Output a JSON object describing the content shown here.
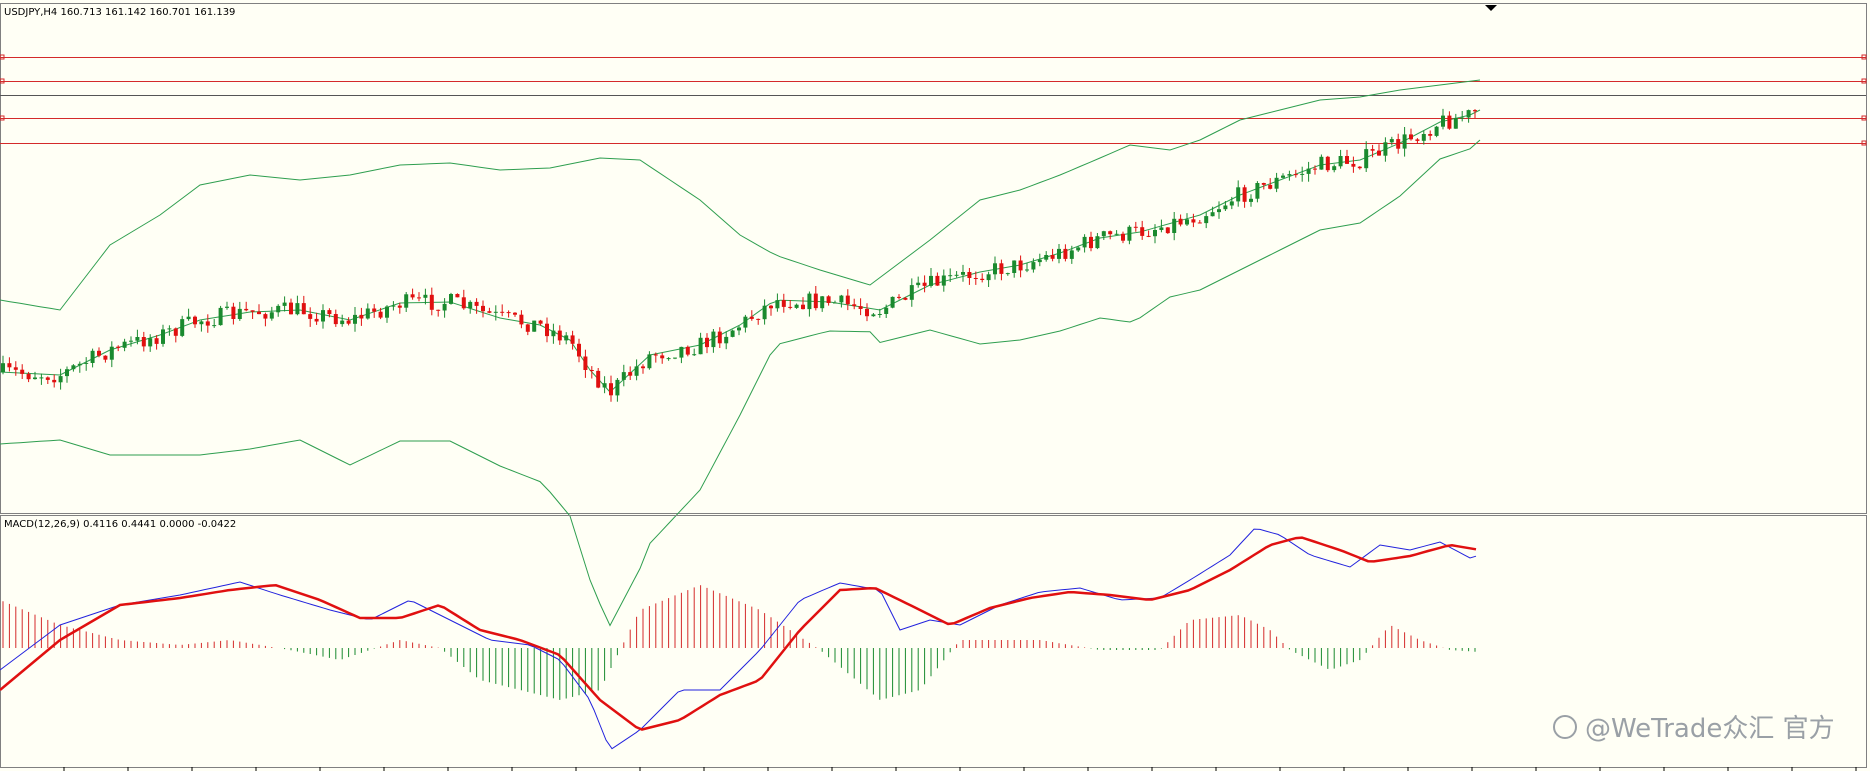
{
  "header": {
    "symbol_label": "USDJPY,H4  160.713 161.142 160.701 161.139"
  },
  "macd_panel": {
    "label": "MACD(12,26,9) 0.4116 0.4441 0.0000 -0.0422"
  },
  "watermark": {
    "text": "@WeTrade众汇 官方"
  },
  "colors": {
    "background": "#fffff5",
    "bull_candle": "#1a8a2e",
    "bear_candle": "#e01010",
    "bands": "#2e9e4f",
    "hlines": "#d42a2a",
    "macd_fast": "#2222dd",
    "macd_signal": "#e01010",
    "hist_pos": "#d42a2a",
    "hist_neg": "#1a8a2e"
  },
  "chart_data": [
    {
      "type": "candlestick",
      "title": "USDJPY,H4",
      "symbol": "USDJPY",
      "timeframe": "H4",
      "ohlc_last": {
        "open": 160.713,
        "high": 161.142,
        "low": 160.701,
        "close": 161.139
      },
      "overlays": [
        "Bollinger Bands"
      ],
      "horizontal_lines": 5,
      "grid": false
    },
    {
      "type": "line",
      "title": "MACD(12,26,9)",
      "params": [
        12,
        26,
        9
      ],
      "values": {
        "macd": 0.4116,
        "signal": 0.4441,
        "histogram_a": 0.0,
        "histogram_b": -0.0422
      },
      "series": [
        {
          "name": "MACD",
          "color": "#2222dd"
        },
        {
          "name": "Signal",
          "color": "#e01010"
        }
      ],
      "histogram": true,
      "grid": false
    }
  ]
}
